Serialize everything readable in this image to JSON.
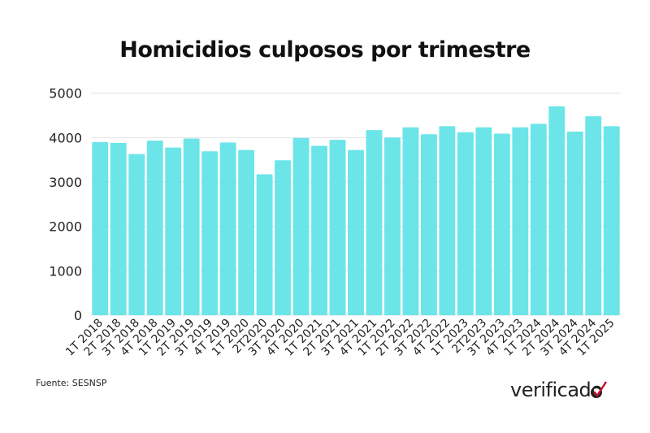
{
  "chart_data": {
    "type": "bar",
    "title": "Homicidios culposos por trimestre",
    "xlabel": "",
    "ylabel": "",
    "ylim": [
      0,
      5000
    ],
    "yticks": [
      0,
      1000,
      2000,
      3000,
      4000,
      5000
    ],
    "grid": true,
    "bar_color": "#6ce5e8",
    "categories": [
      "1T 2018",
      "2T 2018",
      "3T 2018",
      "4T 2018",
      "1T 2019",
      "2T 2019",
      "3T 2019",
      "4T 2019",
      "1T 2020",
      "2T2020",
      "3T 2020",
      "4T 2020",
      "1T 2021",
      "2T 2021",
      "3T 2021",
      "4T 2021",
      "1T 2022",
      "2T 2022",
      "3T 2022",
      "4T 2022",
      "1T 2023",
      "2T2023",
      "3T 2023",
      "4T 2023",
      "1T 2024",
      "2T 2024",
      "3T 2024",
      "4T 2024",
      "1T 2025"
    ],
    "values": [
      3900,
      3880,
      3630,
      3930,
      3775,
      3980,
      3690,
      3890,
      3720,
      3175,
      3490,
      3990,
      3815,
      3950,
      3720,
      4170,
      4000,
      4230,
      4075,
      4255,
      4120,
      4230,
      4090,
      4230,
      4310,
      4705,
      4135,
      4480,
      4255
    ]
  },
  "source": "Fuente: SESNSP",
  "logo": {
    "text": "verificado",
    "accent": "#c8102e"
  }
}
